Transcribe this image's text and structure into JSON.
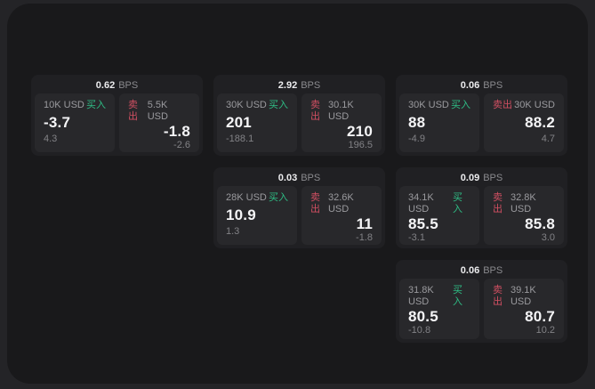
{
  "labels": {
    "buy": "买入",
    "sell": "卖出",
    "bps": "BPS"
  },
  "colors": {
    "background": "#242427",
    "panel": "#19191b",
    "card": "#202023",
    "subcard": "#28282b",
    "buy_accent": "#2ebd85",
    "sell_accent": "#d14f62",
    "value_text": "#f5f5f7",
    "muted_text": "#9a9a9e",
    "dim_text": "#828286"
  },
  "cards": [
    {
      "bps": "0.62",
      "buy": {
        "size": "10K USD",
        "value": "-3.7",
        "delta": "4.3"
      },
      "sell": {
        "size": "5.5K USD",
        "value": "-1.8",
        "delta": "-2.6"
      }
    },
    {
      "bps": "2.92",
      "buy": {
        "size": "30K USD",
        "value": "201",
        "delta": "-188.1"
      },
      "sell": {
        "size": "30.1K USD",
        "value": "210",
        "delta": "196.5"
      }
    },
    {
      "bps": "0.06",
      "buy": {
        "size": "30K USD",
        "value": "88",
        "delta": "-4.9"
      },
      "sell": {
        "size": "30K USD",
        "value": "88.2",
        "delta": "4.7"
      }
    },
    {
      "bps": "0.03",
      "buy": {
        "size": "28K USD",
        "value": "10.9",
        "delta": "1.3"
      },
      "sell": {
        "size": "32.6K USD",
        "value": "11",
        "delta": "-1.8"
      }
    },
    {
      "bps": "0.09",
      "buy": {
        "size": "34.1K USD",
        "value": "85.5",
        "delta": "-3.1"
      },
      "sell": {
        "size": "32.8K USD",
        "value": "85.8",
        "delta": "3.0"
      }
    },
    {
      "bps": "0.06",
      "buy": {
        "size": "31.8K USD",
        "value": "80.5",
        "delta": "-10.8"
      },
      "sell": {
        "size": "39.1K USD",
        "value": "80.7",
        "delta": "10.2"
      }
    }
  ]
}
